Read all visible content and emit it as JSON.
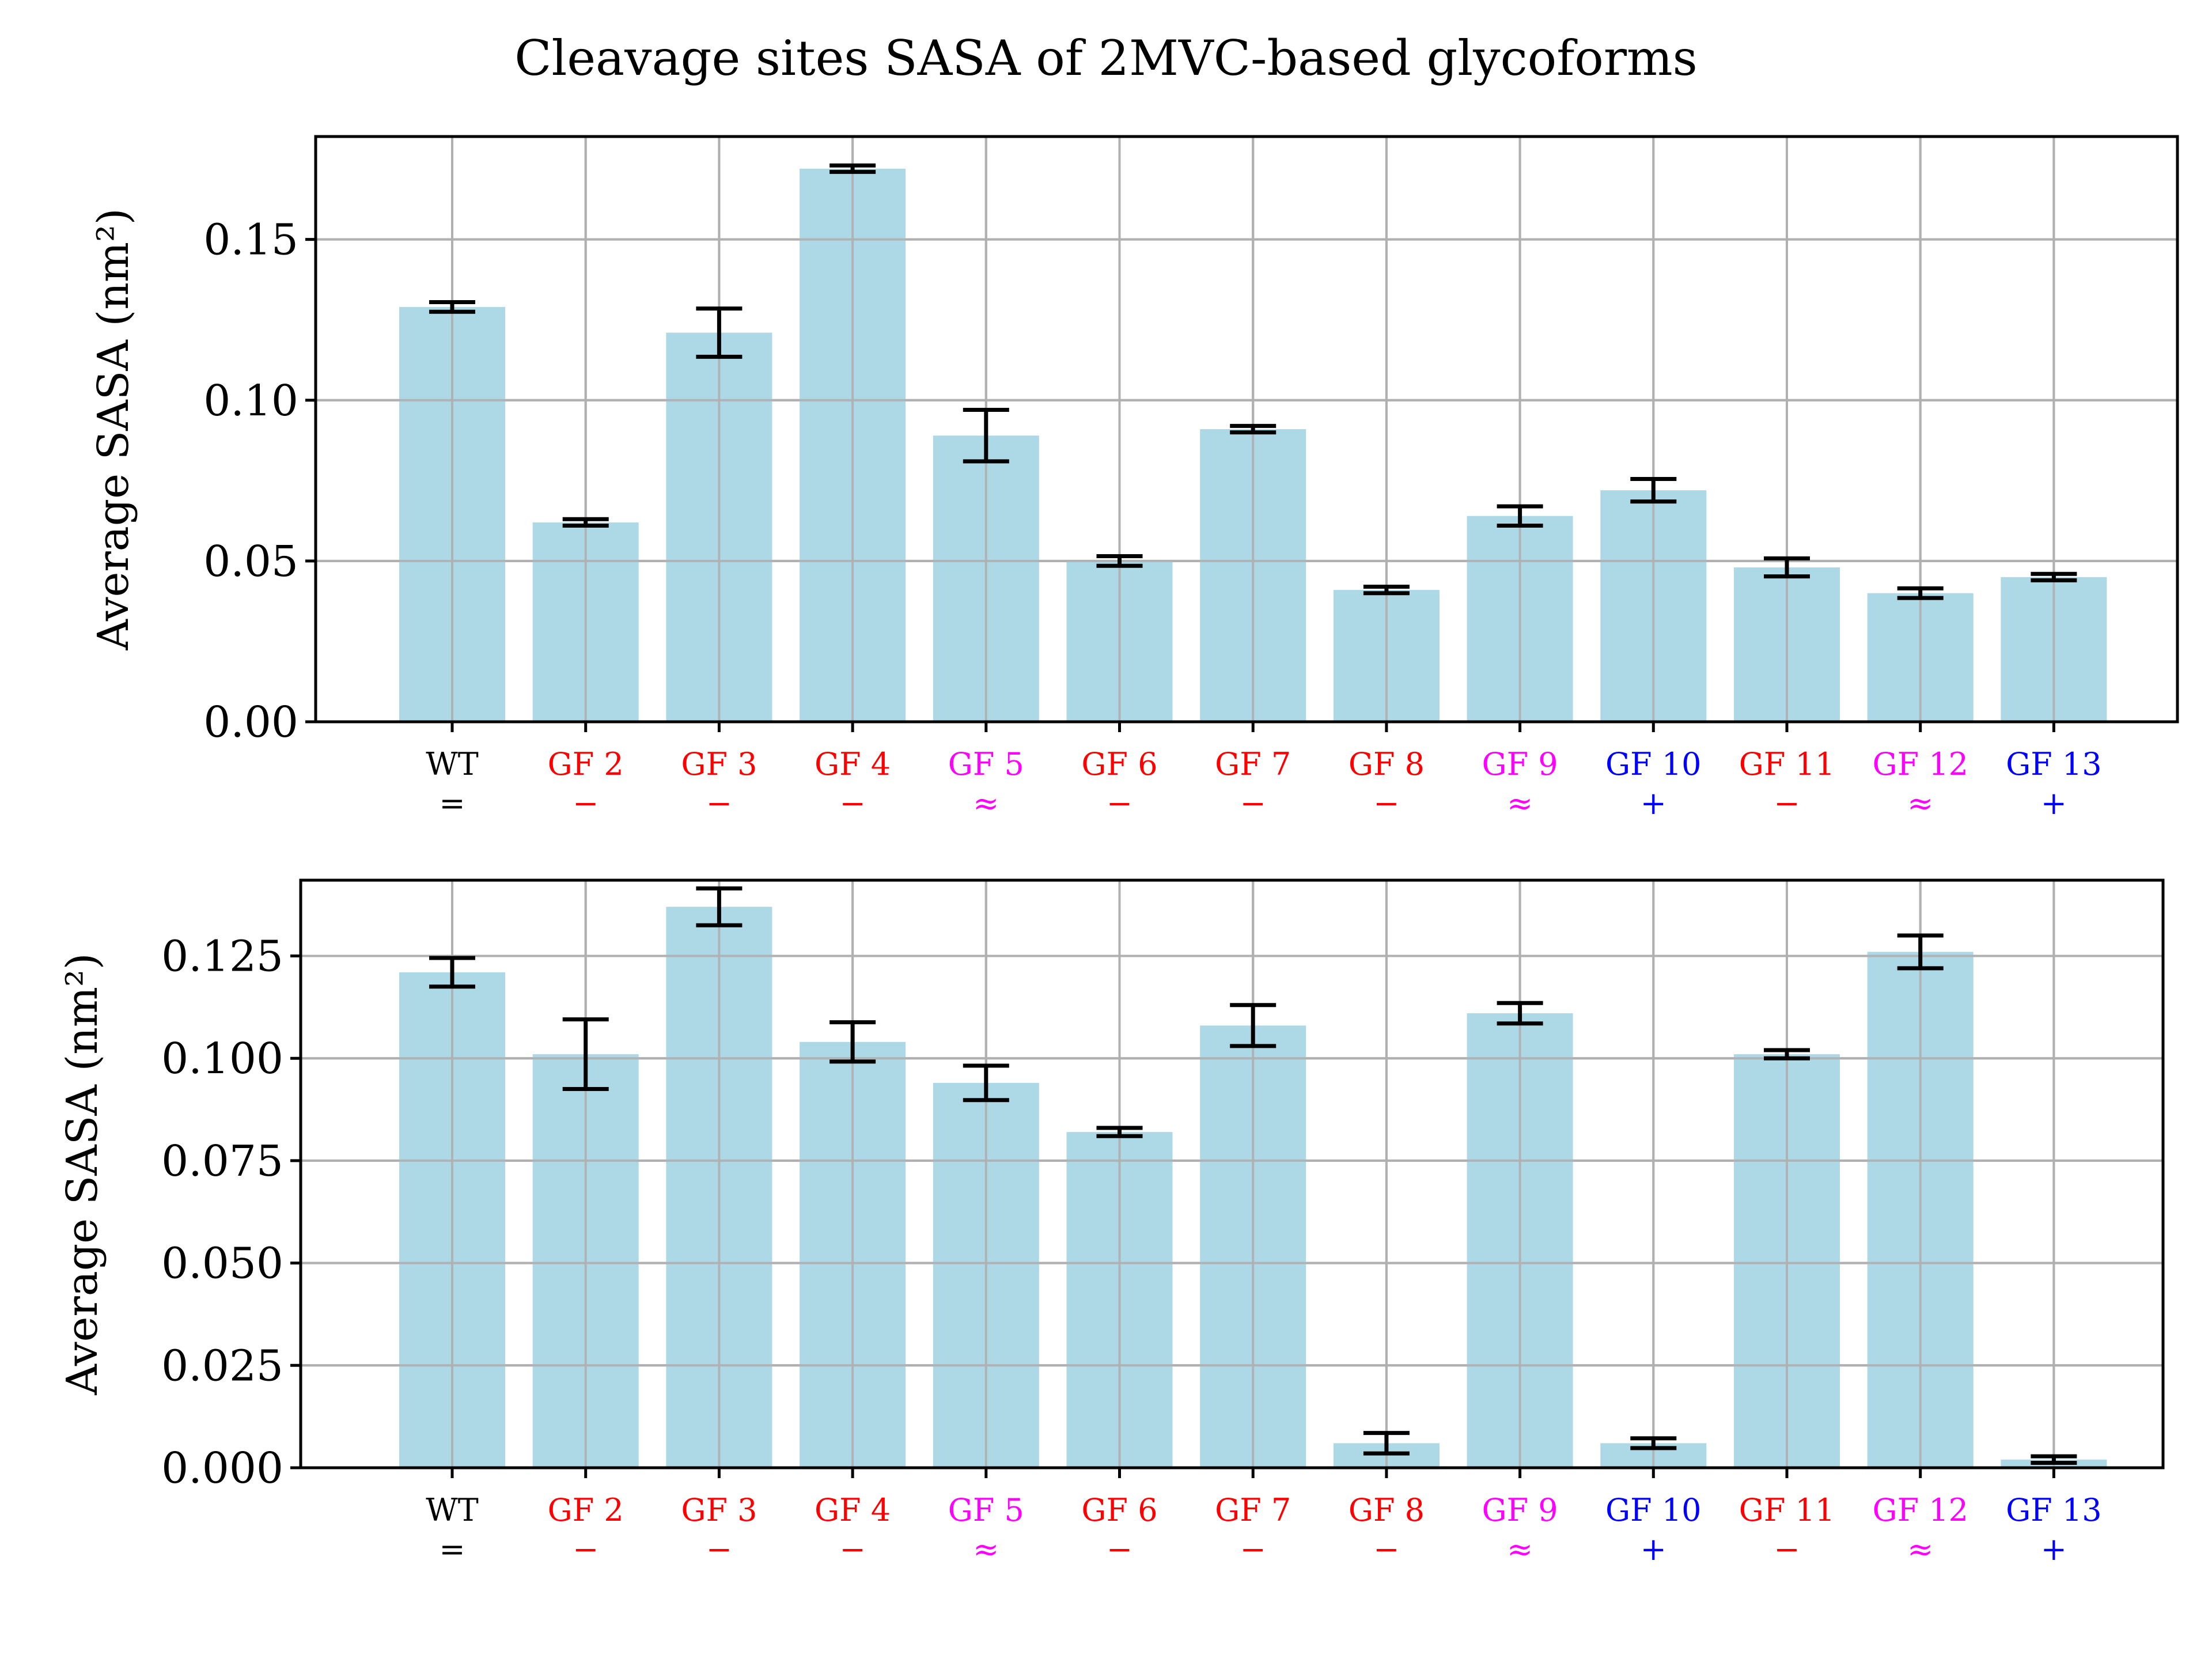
{
  "title": "Cleavage sites SASA of 2MVC-based glycoforms",
  "colors": {
    "bar": "#add8e6",
    "grid": "#b0b0b0",
    "red": "#ff0000",
    "magenta": "#ff00ff",
    "blue": "#0000ff",
    "black": "#000000"
  },
  "chart_data": [
    {
      "type": "bar",
      "ylabel": "Average SASA (nm²)",
      "ylim": [
        0,
        0.182
      ],
      "yticks": [
        "0.00",
        "0.05",
        "0.10",
        "0.15"
      ],
      "ytick_values": [
        0.0,
        0.05,
        0.1,
        0.15
      ],
      "grid": true,
      "categories": [
        {
          "label": "WT",
          "symbol": "=",
          "color": "#000000"
        },
        {
          "label": "GF 2",
          "symbol": "−",
          "color": "#ff0000"
        },
        {
          "label": "GF 3",
          "symbol": "−",
          "color": "#ff0000"
        },
        {
          "label": "GF 4",
          "symbol": "−",
          "color": "#ff0000"
        },
        {
          "label": "GF 5",
          "symbol": "≈",
          "color": "#ff00ff"
        },
        {
          "label": "GF 6",
          "symbol": "−",
          "color": "#ff0000"
        },
        {
          "label": "GF 7",
          "symbol": "−",
          "color": "#ff0000"
        },
        {
          "label": "GF 8",
          "symbol": "−",
          "color": "#ff0000"
        },
        {
          "label": "GF 9",
          "symbol": "≈",
          "color": "#ff00ff"
        },
        {
          "label": "GF 10",
          "symbol": "+",
          "color": "#0000ff"
        },
        {
          "label": "GF 11",
          "symbol": "−",
          "color": "#ff0000"
        },
        {
          "label": "GF 12",
          "symbol": "≈",
          "color": "#ff00ff"
        },
        {
          "label": "GF 13",
          "symbol": "+",
          "color": "#0000ff"
        }
      ],
      "values": [
        0.129,
        0.062,
        0.121,
        0.172,
        0.089,
        0.05,
        0.091,
        0.041,
        0.064,
        0.072,
        0.048,
        0.04,
        0.045
      ],
      "errors": [
        0.0015,
        0.001,
        0.0075,
        0.001,
        0.008,
        0.0015,
        0.001,
        0.001,
        0.003,
        0.0035,
        0.0028,
        0.0015,
        0.001
      ]
    },
    {
      "type": "bar",
      "ylabel": "Average SASA (nm²)",
      "ylim": [
        0,
        0.1435
      ],
      "yticks": [
        "0.000",
        "0.025",
        "0.050",
        "0.075",
        "0.100",
        "0.125"
      ],
      "ytick_values": [
        0.0,
        0.025,
        0.05,
        0.075,
        0.1,
        0.125
      ],
      "grid": true,
      "categories": [
        {
          "label": "WT",
          "symbol": "=",
          "color": "#000000"
        },
        {
          "label": "GF 2",
          "symbol": "−",
          "color": "#ff0000"
        },
        {
          "label": "GF 3",
          "symbol": "−",
          "color": "#ff0000"
        },
        {
          "label": "GF 4",
          "symbol": "−",
          "color": "#ff0000"
        },
        {
          "label": "GF 5",
          "symbol": "≈",
          "color": "#ff00ff"
        },
        {
          "label": "GF 6",
          "symbol": "−",
          "color": "#ff0000"
        },
        {
          "label": "GF 7",
          "symbol": "−",
          "color": "#ff0000"
        },
        {
          "label": "GF 8",
          "symbol": "−",
          "color": "#ff0000"
        },
        {
          "label": "GF 9",
          "symbol": "≈",
          "color": "#ff00ff"
        },
        {
          "label": "GF 10",
          "symbol": "+",
          "color": "#0000ff"
        },
        {
          "label": "GF 11",
          "symbol": "−",
          "color": "#ff0000"
        },
        {
          "label": "GF 12",
          "symbol": "≈",
          "color": "#ff00ff"
        },
        {
          "label": "GF 13",
          "symbol": "+",
          "color": "#0000ff"
        }
      ],
      "values": [
        0.121,
        0.101,
        0.137,
        0.104,
        0.094,
        0.082,
        0.108,
        0.006,
        0.111,
        0.006,
        0.101,
        0.126,
        0.002
      ],
      "errors": [
        0.0035,
        0.0085,
        0.0045,
        0.0048,
        0.0042,
        0.001,
        0.005,
        0.0025,
        0.0025,
        0.0012,
        0.001,
        0.004,
        0.0008
      ]
    }
  ]
}
